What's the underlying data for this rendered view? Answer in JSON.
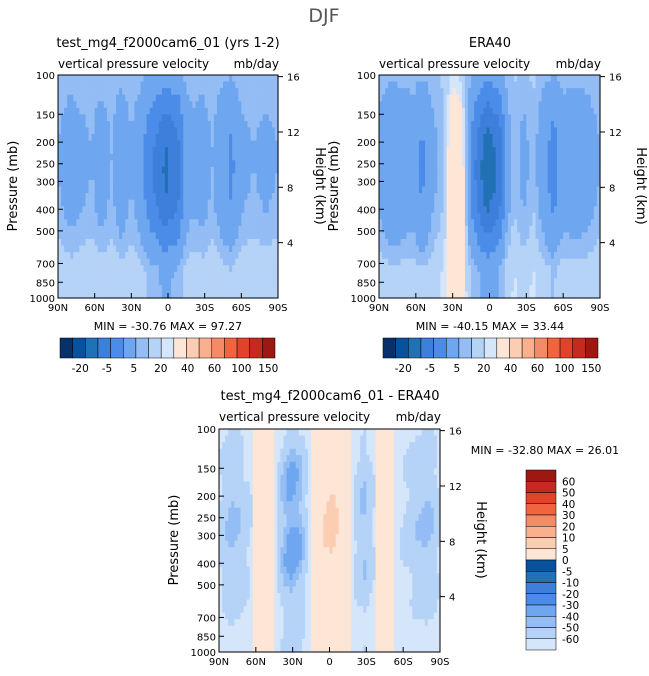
{
  "figure": {
    "title": "DJF"
  },
  "colors": {
    "neg": [
      "#08306b",
      "#08519c",
      "#2171b5",
      "#3d7fdb",
      "#4a8ce8",
      "#6ea6f0",
      "#93bdf4",
      "#b5d2f7",
      "#d6e6fa"
    ],
    "pos": [
      "#fde6d6",
      "#fbcdb2",
      "#f9b08e",
      "#f58a66",
      "#f0643f",
      "#e2412a",
      "#c62a1e",
      "#9e1812"
    ]
  },
  "chart_data": [
    {
      "id": "model",
      "type": "heatmap",
      "title": "test_mg4_f2000cam6_01 (yrs 1-2)",
      "subtitle_left": "vertical pressure velocity",
      "subtitle_right": "mb/day",
      "xlabel": "",
      "ylabel": "Pressure (mb)",
      "ylabel_right": "Height (km)",
      "x_ticks": [
        "90N",
        "60N",
        "30N",
        "0",
        "30S",
        "60S",
        "90S"
      ],
      "x_range": [
        90,
        -90
      ],
      "y_ticks": [
        "100",
        "150",
        "200",
        "250",
        "300",
        "400",
        "500",
        "700",
        "850",
        "1000"
      ],
      "y_range": [
        100,
        1000
      ],
      "y_scale": "log",
      "height_ticks": [
        "16",
        "12",
        "8",
        "4"
      ],
      "stats": "MIN = -30.76   MAX =  97.27",
      "colorbar_labels": [
        "-20",
        "-5",
        "5",
        "20",
        "40",
        "60",
        "100",
        "150"
      ],
      "profile": [
        [
          90,
          -3
        ],
        [
          80,
          -5
        ],
        [
          72,
          -4
        ],
        [
          62,
          -3
        ],
        [
          55,
          -5
        ],
        [
          46,
          -3
        ],
        [
          38,
          -6
        ],
        [
          30,
          -3
        ],
        [
          22,
          -6
        ],
        [
          15,
          -10
        ],
        [
          8,
          -13
        ],
        [
          2,
          -16
        ],
        [
          -3,
          -14
        ],
        [
          -8,
          -13
        ],
        [
          -14,
          -6
        ],
        [
          -20,
          -4
        ],
        [
          -28,
          -5
        ],
        [
          -36,
          -3
        ],
        [
          -45,
          -6
        ],
        [
          -52,
          -8
        ],
        [
          -60,
          -4
        ],
        [
          -70,
          -3
        ],
        [
          -80,
          -4
        ],
        [
          -90,
          -3
        ]
      ]
    },
    {
      "id": "obs",
      "type": "heatmap",
      "title": "ERA40",
      "subtitle_left": "vertical pressure velocity",
      "subtitle_right": "mb/day",
      "xlabel": "",
      "ylabel": "Pressure (mb)",
      "ylabel_right": "Height (km)",
      "x_ticks": [
        "90N",
        "60N",
        "30N",
        "0",
        "30S",
        "60S",
        "90S"
      ],
      "x_range": [
        90,
        -90
      ],
      "y_ticks": [
        "100",
        "150",
        "200",
        "250",
        "300",
        "400",
        "500",
        "700",
        "850",
        "1000"
      ],
      "y_range": [
        100,
        1000
      ],
      "y_scale": "log",
      "height_ticks": [
        "16",
        "12",
        "8",
        "4"
      ],
      "stats": "MIN = -40.15   MAX =  33.44",
      "colorbar_labels": [
        "-20",
        "-5",
        "5",
        "20",
        "40",
        "60",
        "100",
        "150"
      ],
      "profile": [
        [
          90,
          -4
        ],
        [
          80,
          -7
        ],
        [
          72,
          -6
        ],
        [
          62,
          -5
        ],
        [
          55,
          -8
        ],
        [
          46,
          -4
        ],
        [
          38,
          -2
        ],
        [
          30,
          4
        ],
        [
          22,
          2
        ],
        [
          15,
          -8
        ],
        [
          8,
          -14
        ],
        [
          2,
          -18
        ],
        [
          -3,
          -16
        ],
        [
          -8,
          -14
        ],
        [
          -14,
          -5
        ],
        [
          -20,
          -2
        ],
        [
          -28,
          -4
        ],
        [
          -36,
          -2
        ],
        [
          -45,
          -6
        ],
        [
          -52,
          -9
        ],
        [
          -60,
          -5
        ],
        [
          -70,
          -6
        ],
        [
          -80,
          -5
        ],
        [
          -90,
          -3
        ]
      ]
    },
    {
      "id": "diff",
      "type": "heatmap",
      "title": "test_mg4_f2000cam6_01 - ERA40",
      "subtitle_left": "vertical pressure velocity",
      "subtitle_right": "mb/day",
      "xlabel": "",
      "ylabel": "Pressure (mb)",
      "ylabel_right": "Height (km)",
      "x_ticks": [
        "90N",
        "60N",
        "30N",
        "0",
        "30S",
        "60S",
        "90S"
      ],
      "x_range": [
        90,
        -90
      ],
      "y_ticks": [
        "100",
        "150",
        "200",
        "250",
        "300",
        "400",
        "500",
        "700",
        "850",
        "1000"
      ],
      "y_range": [
        100,
        1000
      ],
      "y_scale": "log",
      "height_ticks": [
        "16",
        "12",
        "8",
        "4"
      ],
      "stats": "MIN = -32.80   MAX =   26.01",
      "colorbar_labels": [
        "60",
        "50",
        "40",
        "30",
        "20",
        "10",
        "5",
        "0",
        "-5",
        "-10",
        "-20",
        "-30",
        "-40",
        "-50",
        "-60"
      ],
      "profile": [
        [
          90,
          -1
        ],
        [
          80,
          -3
        ],
        [
          72,
          -2
        ],
        [
          64,
          -1
        ],
        [
          56,
          2
        ],
        [
          48,
          1
        ],
        [
          40,
          -2
        ],
        [
          32,
          -6
        ],
        [
          24,
          -4
        ],
        [
          16,
          0
        ],
        [
          10,
          1
        ],
        [
          4,
          4
        ],
        [
          -2,
          6
        ],
        [
          -8,
          3
        ],
        [
          -14,
          1
        ],
        [
          -20,
          -1
        ],
        [
          -28,
          -3
        ],
        [
          -36,
          -1
        ],
        [
          -44,
          2
        ],
        [
          -52,
          0
        ],
        [
          -60,
          -1
        ],
        [
          -70,
          -2
        ],
        [
          -80,
          -3
        ],
        [
          -90,
          -1
        ]
      ]
    }
  ]
}
